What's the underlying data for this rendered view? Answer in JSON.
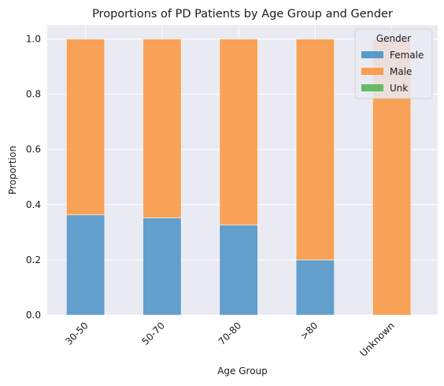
{
  "chart_data": {
    "type": "bar",
    "stacked": true,
    "title": "Proportions of PD Patients by Age Group and Gender",
    "xlabel": "Age Group",
    "ylabel": "Proportion",
    "categories": [
      "30-50",
      "50-70",
      "70-80",
      ">80",
      "Unknown"
    ],
    "series": [
      {
        "name": "Female",
        "color": "#5b9bc9",
        "values": [
          0.363,
          0.352,
          0.326,
          0.2,
          0.0
        ]
      },
      {
        "name": "Male",
        "color": "#f89e4e",
        "values": [
          0.637,
          0.648,
          0.674,
          0.8,
          1.0
        ]
      },
      {
        "name": "Unk",
        "color": "#66bb66",
        "values": [
          0.0,
          0.0,
          0.0,
          0.0,
          0.0
        ]
      }
    ],
    "ylim": [
      0,
      1.05
    ],
    "yticks": [
      "0.0",
      "0.2",
      "0.4",
      "0.6",
      "0.8",
      "1.0"
    ],
    "grid": true,
    "legend": {
      "title": "Gender",
      "placement": "top-right"
    }
  }
}
